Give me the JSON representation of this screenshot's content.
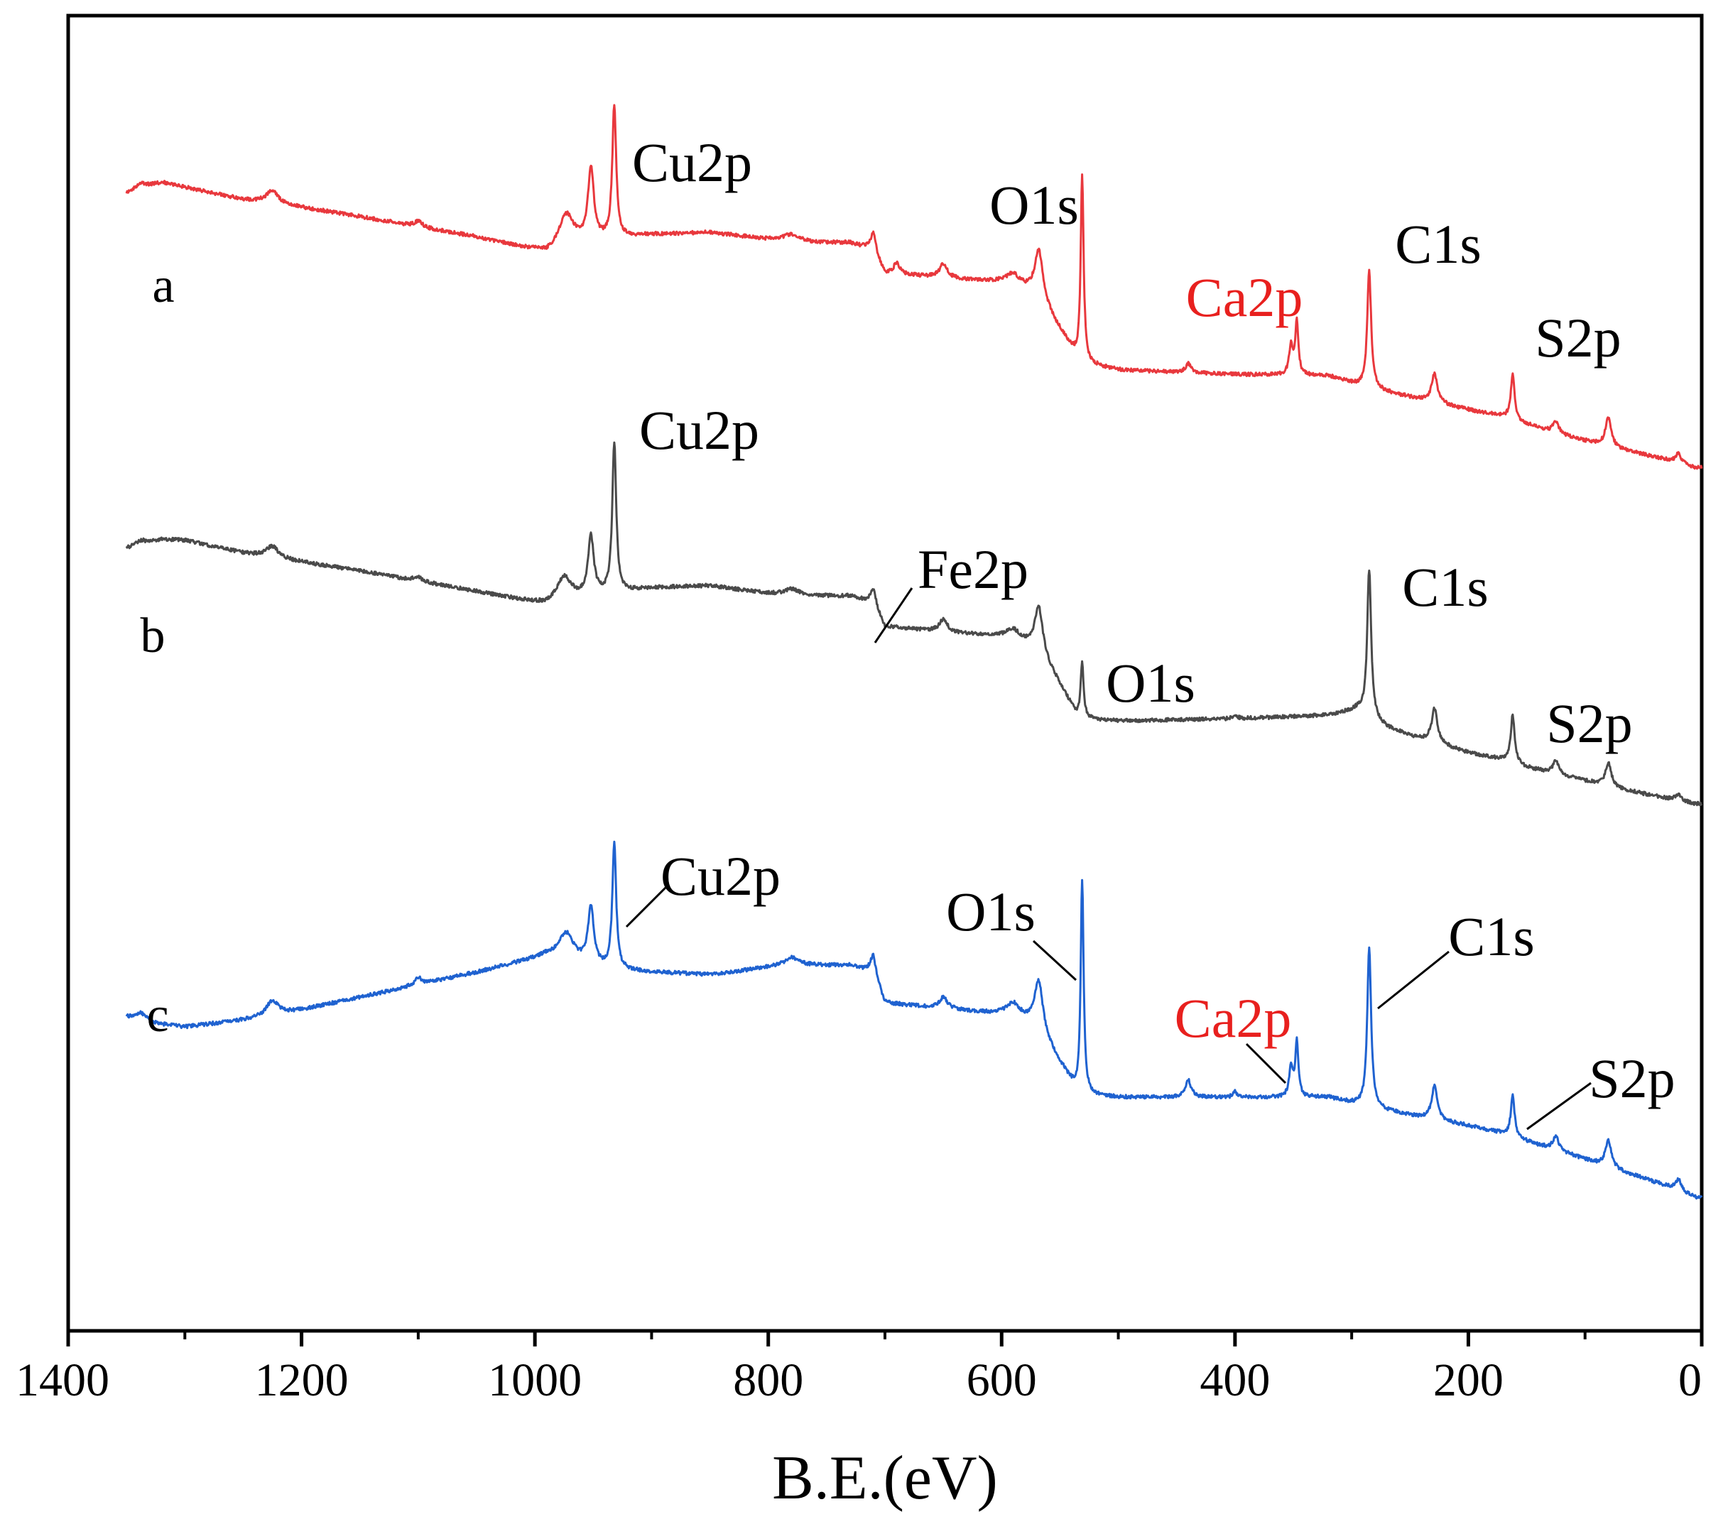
{
  "chart_data": {
    "type": "line",
    "title": "",
    "xlabel": "B.E.(eV)",
    "ylabel": "",
    "xlim": [
      1400,
      0
    ],
    "x_reversed": true,
    "y_ticks_shown": false,
    "grid": false,
    "xticks": [
      1400,
      1200,
      1000,
      800,
      600,
      400,
      200,
      0
    ],
    "xtick_labels": [
      "1400",
      "1200",
      "1000",
      "800",
      "600",
      "400",
      "200",
      "0"
    ],
    "colors": {
      "a": "#e8383d",
      "b": "#4a4a4a",
      "c": "#1f62d0",
      "annotation": "#000000",
      "annotation_highlight": "#e8201e"
    },
    "peak_positions_ev": {
      "Cu2p_1/2": 952,
      "Cu2p_3/2": 932,
      "Fe2p": 711,
      "O1s": 531,
      "Ca2p": 347,
      "C1s": 285,
      "S2p": 162
    },
    "series": [
      {
        "name": "a",
        "color": "#e8383d",
        "peak_labels": [
          {
            "text": "Cu2p",
            "ev": 932,
            "color": "#000000"
          },
          {
            "text": "O1s",
            "ev": 531,
            "color": "#000000"
          },
          {
            "text": "Ca2p",
            "ev": 347,
            "color": "#e8201e"
          },
          {
            "text": "C1s",
            "ev": 285,
            "color": "#000000"
          },
          {
            "text": "S2p",
            "ev": 162,
            "color": "#000000"
          }
        ],
        "anchors": [
          [
            1350,
            295
          ],
          [
            1320,
            305
          ],
          [
            1300,
            301
          ],
          [
            1250,
            290
          ],
          [
            1200,
            283
          ],
          [
            1150,
            275
          ],
          [
            1100,
            266
          ],
          [
            1050,
            257
          ],
          [
            1000,
            245
          ],
          [
            990,
            242
          ],
          [
            960,
            250
          ],
          [
            935,
            255
          ],
          [
            900,
            259
          ],
          [
            850,
            261
          ],
          [
            800,
            255
          ],
          [
            760,
            252
          ],
          [
            730,
            252
          ],
          [
            710,
            245
          ],
          [
            700,
            225
          ],
          [
            600,
            217
          ],
          [
            570,
            208
          ],
          [
            550,
            175
          ],
          [
            535,
            150
          ],
          [
            531,
            146
          ],
          [
            500,
            140
          ],
          [
            400,
            136
          ],
          [
            320,
            135
          ],
          [
            290,
            125
          ],
          [
            250,
            116
          ],
          [
            200,
            105
          ],
          [
            170,
            99
          ],
          [
            150,
            92
          ],
          [
            120,
            83
          ],
          [
            90,
            75
          ],
          [
            60,
            68
          ],
          [
            30,
            61
          ],
          [
            5,
            54
          ]
        ],
        "peaks": [
          [
            1338,
            6,
            5
          ],
          [
            1225,
            6,
            12
          ],
          [
            1100,
            4,
            5
          ],
          [
            973,
            8,
            30
          ],
          [
            952,
            3,
            64
          ],
          [
            932,
            2,
            116
          ],
          [
            780,
            8,
            6
          ],
          [
            710,
            3,
            15
          ],
          [
            690,
            3,
            10
          ],
          [
            650,
            4,
            12
          ],
          [
            590,
            7,
            10
          ],
          [
            568,
            4,
            40
          ],
          [
            531,
            1.5,
            165
          ],
          [
            440,
            3,
            8
          ],
          [
            352,
            2,
            25
          ],
          [
            347,
            1.5,
            48
          ],
          [
            285,
            2,
            103
          ],
          [
            229,
            3,
            25
          ],
          [
            162,
            2,
            40
          ],
          [
            125,
            3,
            10
          ],
          [
            80,
            3,
            25
          ],
          [
            20,
            3,
            8
          ]
        ]
      },
      {
        "name": "b",
        "color": "#4a4a4a",
        "peak_labels": [
          {
            "text": "Cu2p",
            "ev": 932,
            "color": "#000000"
          },
          {
            "text": "Fe2p",
            "ev": 711,
            "color": "#000000"
          },
          {
            "text": "O1s",
            "ev": 531,
            "color": "#000000"
          },
          {
            "text": "C1s",
            "ev": 285,
            "color": "#000000"
          },
          {
            "text": "S2p",
            "ev": 162,
            "color": "#000000"
          }
        ],
        "anchors": [
          [
            1350,
            290
          ],
          [
            1320,
            298
          ],
          [
            1300,
            297
          ],
          [
            1250,
            286
          ],
          [
            1200,
            278
          ],
          [
            1150,
            270
          ],
          [
            1100,
            261
          ],
          [
            1050,
            252
          ],
          [
            1000,
            242
          ],
          [
            990,
            240
          ],
          [
            960,
            245
          ],
          [
            935,
            250
          ],
          [
            900,
            255
          ],
          [
            850,
            257
          ],
          [
            800,
            250
          ],
          [
            760,
            248
          ],
          [
            730,
            248
          ],
          [
            710,
            242
          ],
          [
            700,
            221
          ],
          [
            600,
            212
          ],
          [
            570,
            203
          ],
          [
            550,
            170
          ],
          [
            535,
            142
          ],
          [
            531,
            140
          ],
          [
            500,
            138
          ],
          [
            400,
            140
          ],
          [
            320,
            143
          ],
          [
            295,
            148
          ],
          [
            270,
            132
          ],
          [
            250,
            125
          ],
          [
            200,
            110
          ],
          [
            170,
            104
          ],
          [
            150,
            97
          ],
          [
            120,
            90
          ],
          [
            90,
            83
          ],
          [
            60,
            76
          ],
          [
            30,
            70
          ],
          [
            5,
            65
          ]
        ],
        "peaks": [
          [
            1338,
            5,
            4
          ],
          [
            1225,
            6,
            10
          ],
          [
            1100,
            4,
            4
          ],
          [
            975,
            8,
            22
          ],
          [
            952,
            3,
            52
          ],
          [
            932,
            2,
            132
          ],
          [
            780,
            8,
            5
          ],
          [
            710,
            3,
            12
          ],
          [
            650,
            4,
            11
          ],
          [
            590,
            7,
            9
          ],
          [
            568,
            4,
            38
          ],
          [
            531,
            1.5,
            50
          ],
          [
            400,
            2,
            4
          ],
          [
            285,
            2,
            130
          ],
          [
            229,
            3,
            30
          ],
          [
            162,
            2,
            42
          ],
          [
            125,
            3,
            12
          ],
          [
            80,
            3,
            20
          ],
          [
            20,
            3,
            5
          ]
        ]
      },
      {
        "name": "c",
        "color": "#1f62d0",
        "peak_labels": [
          {
            "text": "Cu2p",
            "ev": 932,
            "color": "#000000"
          },
          {
            "text": "O1s",
            "ev": 531,
            "color": "#000000"
          },
          {
            "text": "Ca2p",
            "ev": 347,
            "color": "#e8201e"
          },
          {
            "text": "C1s",
            "ev": 285,
            "color": "#000000"
          },
          {
            "text": "S2p",
            "ev": 162,
            "color": "#000000"
          }
        ],
        "anchors": [
          [
            1350,
            298
          ],
          [
            1320,
            292
          ],
          [
            1300,
            290
          ],
          [
            1250,
            296
          ],
          [
            1200,
            305
          ],
          [
            1150,
            316
          ],
          [
            1100,
            327
          ],
          [
            1050,
            338
          ],
          [
            1000,
            350
          ],
          [
            990,
            352
          ],
          [
            960,
            345
          ],
          [
            935,
            340
          ],
          [
            900,
            338
          ],
          [
            850,
            336
          ],
          [
            800,
            342
          ],
          [
            760,
            344
          ],
          [
            730,
            344
          ],
          [
            710,
            338
          ],
          [
            700,
            311
          ],
          [
            600,
            301
          ],
          [
            570,
            293
          ],
          [
            550,
            258
          ],
          [
            535,
            232
          ],
          [
            531,
            230
          ],
          [
            500,
            228
          ],
          [
            400,
            228
          ],
          [
            320,
            228
          ],
          [
            290,
            220
          ],
          [
            250,
            212
          ],
          [
            200,
            203
          ],
          [
            170,
            196
          ],
          [
            150,
            189
          ],
          [
            120,
            180
          ],
          [
            90,
            170
          ],
          [
            60,
            160
          ],
          [
            30,
            150
          ],
          [
            5,
            140
          ]
        ],
        "peaks": [
          [
            1338,
            6,
            7
          ],
          [
            1225,
            6,
            13
          ],
          [
            1100,
            4,
            6
          ],
          [
            973,
            8,
            24
          ],
          [
            952,
            3,
            50
          ],
          [
            932,
            2,
            110
          ],
          [
            780,
            8,
            8
          ],
          [
            710,
            3,
            15
          ],
          [
            650,
            4,
            10
          ],
          [
            590,
            7,
            12
          ],
          [
            568,
            4,
            40
          ],
          [
            531,
            1.5,
            190
          ],
          [
            440,
            3,
            15
          ],
          [
            400,
            2,
            5
          ],
          [
            352,
            2,
            25
          ],
          [
            347,
            1.5,
            50
          ],
          [
            285,
            2,
            140
          ],
          [
            229,
            3,
            30
          ],
          [
            162,
            2,
            36
          ],
          [
            125,
            3,
            12
          ],
          [
            80,
            3,
            24
          ],
          [
            20,
            3,
            10
          ]
        ]
      }
    ]
  }
}
